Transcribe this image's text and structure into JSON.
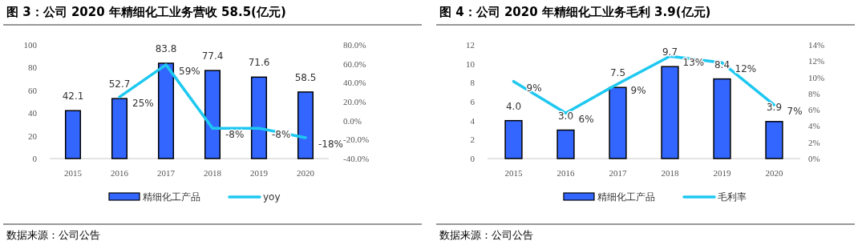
{
  "chart_data": [
    {
      "type": "bar",
      "title": "图 3：公司 2020 年精细化工业务营收 58.5(亿元)",
      "categories": [
        "2015",
        "2016",
        "2017",
        "2018",
        "2019",
        "2020"
      ],
      "series": [
        {
          "name": "精细化工产品",
          "color": "#3366ff",
          "values": [
            42.1,
            52.7,
            83.8,
            77.4,
            71.6,
            58.5
          ],
          "value_labels": [
            "42.1",
            "52.7",
            "83.8",
            "77.4",
            "71.6",
            "58.5"
          ]
        },
        {
          "name": "yoy",
          "type": "line",
          "axis": "y2",
          "color": "#1ec8f0",
          "values": [
            null,
            25,
            59,
            -8,
            -8,
            -18
          ],
          "value_labels": [
            null,
            "25%",
            "59%",
            "-8%",
            "-8%",
            "-18%"
          ]
        }
      ],
      "ylim": [
        0,
        100
      ],
      "yticks": [
        0,
        20,
        40,
        60,
        80,
        100
      ],
      "y2lim": [
        -40,
        80
      ],
      "y2ticks": [
        {
          "value": -40,
          "label": "-40.0%"
        },
        {
          "value": -20,
          "label": "-20.0%"
        },
        {
          "value": 0,
          "label": "0.0%"
        },
        {
          "value": 20,
          "label": "20.0%"
        },
        {
          "value": 40,
          "label": "40.0%"
        },
        {
          "value": 60,
          "label": "60.0%"
        },
        {
          "value": 80,
          "label": "80.0%"
        }
      ],
      "legend": "bottom",
      "annotations": [
        "数据来源：公司公告"
      ]
    },
    {
      "type": "bar",
      "title": "图 4：公司 2020 年精细化工业务毛利 3.9(亿元)",
      "categories": [
        "2015",
        "2016",
        "2017",
        "2018",
        "2019",
        "2020"
      ],
      "series": [
        {
          "name": "精细化工产品",
          "color": "#3366ff",
          "values": [
            4.0,
            3.0,
            7.5,
            9.7,
            8.4,
            3.9
          ],
          "value_labels": [
            "4.0",
            "3.0",
            "7.5",
            "9.7",
            "8.4",
            "3.9"
          ]
        },
        {
          "name": "毛利率",
          "type": "line",
          "axis": "y2",
          "color": "#1ec8f0",
          "values": [
            9.5,
            5.6,
            9.2,
            12.6,
            11.8,
            6.6
          ],
          "value_labels": [
            "9%",
            "6%",
            "9%",
            "13%",
            "12%",
            "7%"
          ]
        }
      ],
      "ylim": [
        0,
        12
      ],
      "yticks": [
        0,
        2,
        4,
        6,
        8,
        10,
        12
      ],
      "y2lim": [
        0,
        14
      ],
      "y2ticks": [
        {
          "value": 0,
          "label": "0%"
        },
        {
          "value": 2,
          "label": "2%"
        },
        {
          "value": 4,
          "label": "4%"
        },
        {
          "value": 6,
          "label": "6%"
        },
        {
          "value": 8,
          "label": "8%"
        },
        {
          "value": 10,
          "label": "10%"
        },
        {
          "value": 12,
          "label": "12%"
        },
        {
          "value": 14,
          "label": "14%"
        }
      ],
      "legend": "bottom",
      "annotations": [
        "数据来源：公司公告"
      ]
    }
  ]
}
